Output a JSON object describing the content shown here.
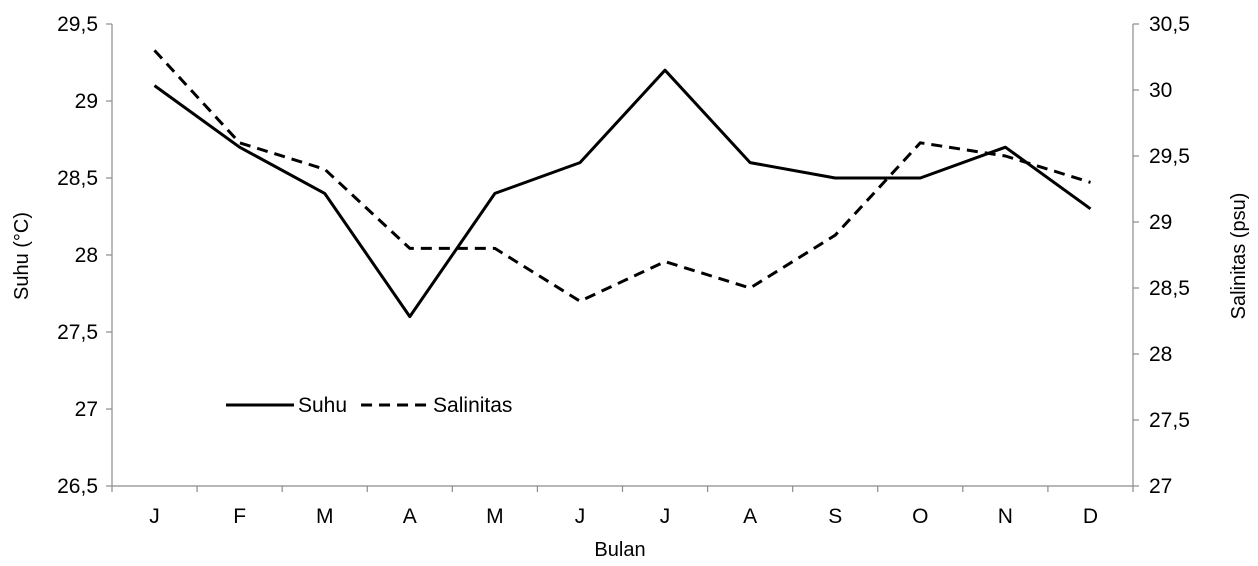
{
  "chart_data": {
    "type": "line",
    "categories": [
      "J",
      "F",
      "M",
      "A",
      "M",
      "J",
      "J",
      "A",
      "S",
      "O",
      "N",
      "D"
    ],
    "series": [
      {
        "name": "Suhu",
        "axis": "left",
        "dash": "solid",
        "color": "#000000",
        "values": [
          29.1,
          28.7,
          28.4,
          27.6,
          28.4,
          28.6,
          29.2,
          28.6,
          28.5,
          28.5,
          28.7,
          28.3
        ]
      },
      {
        "name": "Salinitas",
        "axis": "right",
        "dash": "dashed",
        "color": "#000000",
        "values": [
          30.3,
          29.6,
          29.4,
          28.8,
          28.8,
          28.4,
          28.7,
          28.5,
          28.9,
          29.6,
          29.5,
          29.3
        ]
      }
    ],
    "xlabel": "Bulan",
    "ylabel": "Suhu (°C)",
    "y2label": "Salinitas (psu)",
    "ylim": [
      26.5,
      29.5
    ],
    "y2lim": [
      27,
      30.5
    ],
    "yticks": [
      "26,5",
      "27",
      "27,5",
      "28",
      "28,5",
      "29",
      "29,5"
    ],
    "y2ticks": [
      "27",
      "27,5",
      "28",
      "28,5",
      "29",
      "29,5",
      "30",
      "30,5"
    ],
    "legend": "inside-lower-left",
    "grid": false
  }
}
